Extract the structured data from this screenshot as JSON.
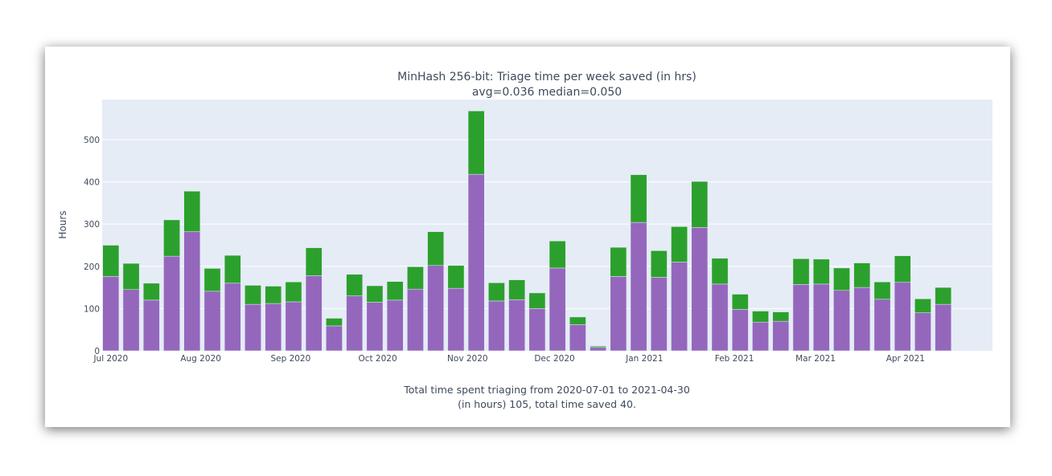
{
  "chart_data": {
    "type": "bar",
    "stacked": true,
    "title": "MinHash 256-bit: Triage time per week saved (in hrs)",
    "subtitle": "avg=0.036 median=0.050",
    "ylabel": "Hours",
    "xlabel": "",
    "ylim": [
      0,
      595
    ],
    "yticks": [
      0,
      100,
      200,
      300,
      400,
      500
    ],
    "xlim": [
      "2020-06-28",
      "2021-05-01"
    ],
    "xticks": [
      {
        "date": "2020-07-01",
        "label": "Jul 2020"
      },
      {
        "date": "2020-08-01",
        "label": "Aug 2020"
      },
      {
        "date": "2020-09-01",
        "label": "Sep 2020"
      },
      {
        "date": "2020-10-01",
        "label": "Oct 2020"
      },
      {
        "date": "2020-11-01",
        "label": "Nov 2020"
      },
      {
        "date": "2020-12-01",
        "label": "Dec 2020"
      },
      {
        "date": "2021-01-01",
        "label": "Jan 2021"
      },
      {
        "date": "2021-02-01",
        "label": "Feb 2021"
      },
      {
        "date": "2021-03-01",
        "label": "Mar 2021"
      },
      {
        "date": "2021-04-01",
        "label": "Apr 2021"
      }
    ],
    "grid": true,
    "x": [
      "2020-07-01",
      "2020-07-08",
      "2020-07-15",
      "2020-07-22",
      "2020-07-29",
      "2020-08-05",
      "2020-08-12",
      "2020-08-19",
      "2020-08-26",
      "2020-09-02",
      "2020-09-09",
      "2020-09-16",
      "2020-09-23",
      "2020-09-30",
      "2020-10-07",
      "2020-10-14",
      "2020-10-21",
      "2020-10-28",
      "2020-11-04",
      "2020-11-11",
      "2020-11-18",
      "2020-11-25",
      "2020-12-02",
      "2020-12-09",
      "2020-12-16",
      "2020-12-23",
      "2020-12-30",
      "2021-01-06",
      "2021-01-13",
      "2021-01-20",
      "2021-01-27",
      "2021-02-03",
      "2021-02-10",
      "2021-02-17",
      "2021-02-24",
      "2021-03-03",
      "2021-03-10",
      "2021-03-17",
      "2021-03-24",
      "2021-03-31",
      "2021-04-07",
      "2021-04-14"
    ],
    "series": [
      {
        "color": "#9467bd",
        "values": [
          176,
          145,
          120,
          224,
          282,
          141,
          160,
          110,
          112,
          116,
          178,
          59,
          130,
          115,
          120,
          146,
          202,
          148,
          418,
          118,
          121,
          100,
          196,
          62,
          8,
          176,
          304,
          174,
          210,
          292,
          158,
          98,
          68,
          70,
          157,
          158,
          143,
          150,
          122,
          162,
          90,
          110
        ]
      },
      {
        "color": "#2ca02c",
        "values": [
          74,
          62,
          40,
          86,
          96,
          54,
          66,
          45,
          41,
          47,
          66,
          18,
          51,
          39,
          44,
          53,
          80,
          54,
          150,
          43,
          47,
          37,
          64,
          18,
          3,
          69,
          113,
          63,
          84,
          109,
          61,
          36,
          26,
          22,
          61,
          59,
          53,
          58,
          41,
          63,
          33,
          40
        ]
      }
    ],
    "plot_background": "#e5ecf6"
  },
  "footer": {
    "line1": "Total time spent triaging from 2020-07-01 to 2021-04-30",
    "line2": "(in hours) 105, total time saved 40."
  }
}
